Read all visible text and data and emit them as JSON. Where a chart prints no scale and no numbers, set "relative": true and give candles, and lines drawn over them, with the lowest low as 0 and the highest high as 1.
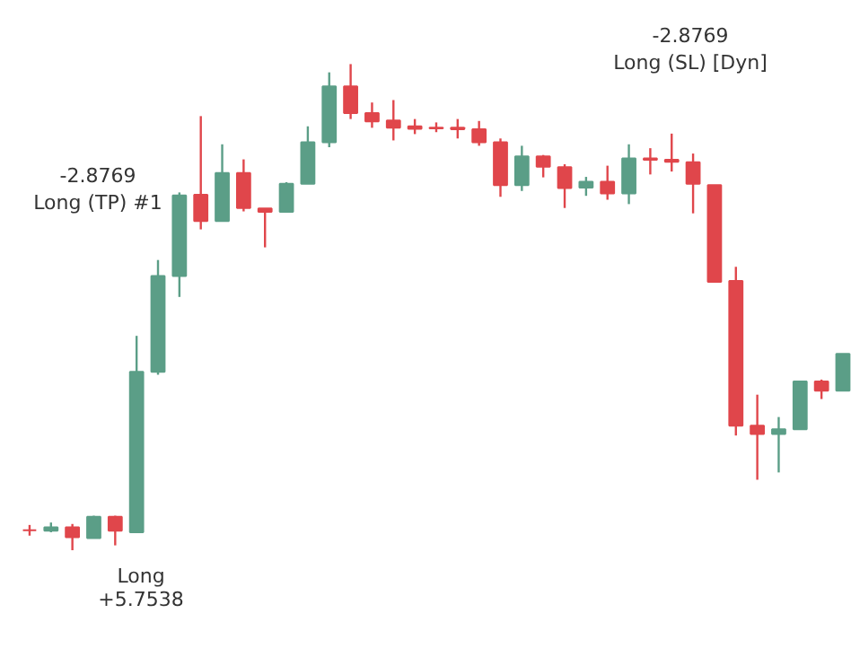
{
  "chart_data": {
    "type": "candlestick",
    "relative": true,
    "categories": [
      null,
      null,
      null,
      null,
      null,
      null,
      null,
      null,
      null,
      null,
      null,
      null,
      null,
      null,
      null,
      null,
      null,
      null,
      null,
      null,
      null,
      null,
      null,
      null,
      null,
      null,
      null,
      null,
      null,
      null,
      null,
      null,
      null,
      null,
      null,
      null,
      null,
      null,
      null
    ],
    "ohlc": [
      [
        0.041,
        0.052,
        0.03,
        0.041
      ],
      [
        0.04,
        0.057,
        0.037,
        0.047
      ],
      [
        0.047,
        0.054,
        0.0,
        0.027
      ],
      [
        0.025,
        0.071,
        0.025,
        0.069
      ],
      [
        0.069,
        0.071,
        0.01,
        0.04
      ],
      [
        0.037,
        0.441,
        0.037,
        0.367
      ],
      [
        0.367,
        0.597,
        0.361,
        0.564
      ],
      [
        0.564,
        0.736,
        0.521,
        0.73
      ],
      [
        0.731,
        0.893,
        0.66,
        0.677
      ],
      [
        0.677,
        0.835,
        0.677,
        0.776
      ],
      [
        0.776,
        0.804,
        0.697,
        0.704
      ],
      [
        0.703,
        0.703,
        0.623,
        0.696
      ],
      [
        0.696,
        0.757,
        0.696,
        0.754
      ],
      [
        0.754,
        0.872,
        0.754,
        0.839
      ],
      [
        0.839,
        0.983,
        0.829,
        0.954
      ],
      [
        0.954,
        1.0,
        0.887,
        0.899
      ],
      [
        0.899,
        0.921,
        0.869,
        0.882
      ],
      [
        0.884,
        0.926,
        0.843,
        0.869
      ],
      [
        0.872,
        0.887,
        0.856,
        0.867
      ],
      [
        0.869,
        0.88,
        0.86,
        0.868
      ],
      [
        0.869,
        0.887,
        0.847,
        0.866
      ],
      [
        0.866,
        0.883,
        0.832,
        0.839
      ],
      [
        0.839,
        0.847,
        0.727,
        0.751
      ],
      [
        0.751,
        0.832,
        0.739,
        0.81
      ],
      [
        0.81,
        0.813,
        0.767,
        0.789
      ],
      [
        0.788,
        0.794,
        0.704,
        0.745
      ],
      [
        0.746,
        0.768,
        0.729,
        0.758
      ],
      [
        0.758,
        0.791,
        0.721,
        0.734
      ],
      [
        0.734,
        0.835,
        0.712,
        0.806
      ],
      [
        0.806,
        0.827,
        0.773,
        0.803
      ],
      [
        0.803,
        0.857,
        0.779,
        0.799
      ],
      [
        0.798,
        0.816,
        0.693,
        0.754
      ],
      [
        0.751,
        0.751,
        0.552,
        0.552
      ],
      [
        0.554,
        0.583,
        0.236,
        0.256
      ],
      [
        0.256,
        0.32,
        0.145,
        0.239
      ],
      [
        0.239,
        0.274,
        0.16,
        0.249
      ],
      [
        0.249,
        0.347,
        0.249,
        0.347
      ],
      [
        0.347,
        0.351,
        0.311,
        0.328
      ],
      [
        0.328,
        0.404,
        0.328,
        0.404
      ]
    ],
    "colors": [
      "#e0464b",
      "#5b9e87",
      "#e0464b",
      "#5b9e87",
      "#e0464b",
      "#5b9e87",
      "#5b9e87",
      "#5b9e87",
      "#e0464b",
      "#5b9e87",
      "#e0464b",
      "#e0464b",
      "#5b9e87",
      "#5b9e87",
      "#5b9e87",
      "#e0464b",
      "#e0464b",
      "#e0464b",
      "#e0464b",
      "#e0464b",
      "#e0464b",
      "#e0464b",
      "#e0464b",
      "#5b9e87",
      "#e0464b",
      "#e0464b",
      "#5b9e87",
      "#e0464b",
      "#5b9e87",
      "#e0464b",
      "#e0464b",
      "#e0464b",
      "#e0464b",
      "#e0464b",
      "#e0464b",
      "#5b9e87",
      "#5b9e87",
      "#e0464b",
      "#5b9e87"
    ],
    "annotations": [
      "-2.8769\nLong (TP) #1",
      "Long\n+5.7538",
      "-2.8769\nLong (SL) [Dyn]"
    ]
  }
}
